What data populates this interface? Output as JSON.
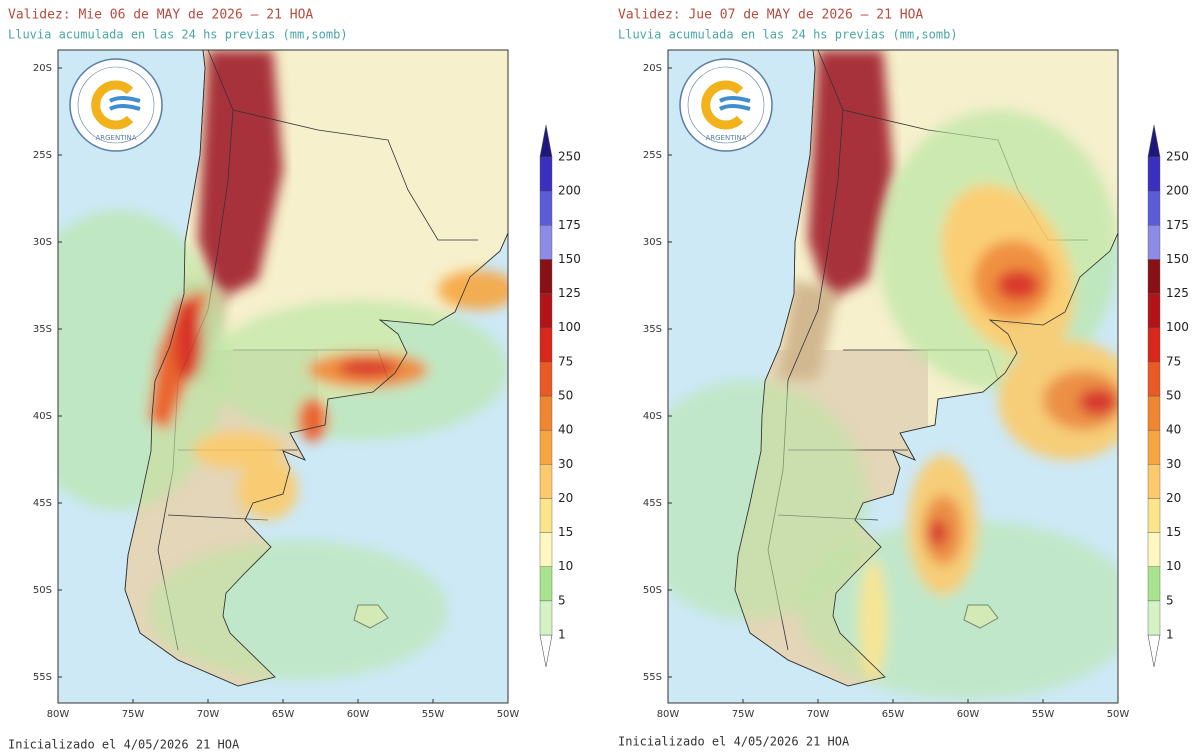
{
  "panels": [
    {
      "title": "Validez: Mie 06 de MAY de 2026 – 21 HOA",
      "subtitle": "Lluvia acumulada en las 24 hs previas (mm,somb)",
      "lat_labels": [
        "20S",
        "25S",
        "30S",
        "35S",
        "40S",
        "45S",
        "50S",
        "55S"
      ],
      "lon_labels": [
        "80W",
        "75W",
        "70W",
        "65W",
        "60W",
        "55W",
        "50W"
      ],
      "footer": "Inicializado el 4/05/2026 21 HOA"
    },
    {
      "title": "Validez: Jue 07 de MAY de 2026 – 21 HOA",
      "subtitle": "Lluvia acumulada en las 24 hs previas (mm,somb)",
      "lat_labels": [
        "20S",
        "25S",
        "30S",
        "35S",
        "40S",
        "45S",
        "50S",
        "55S"
      ],
      "lon_labels": [
        "80W",
        "75W",
        "70W",
        "65W",
        "60W",
        "55W",
        "50W"
      ],
      "footer": "Inicializado el 4/05/2026 21 HOA"
    }
  ],
  "logo_text": "ARGENTINA",
  "colorbar": {
    "levels": [
      1,
      5,
      10,
      15,
      20,
      30,
      40,
      50,
      75,
      100,
      125,
      150,
      175,
      200,
      250
    ],
    "colors": [
      "#ffffff",
      "#d4f2c4",
      "#a8e490",
      "#fdf7c0",
      "#fbe58a",
      "#fbca6a",
      "#f7a540",
      "#f08630",
      "#ea5a24",
      "#d9271c",
      "#b3141a",
      "#8a1018",
      "#8c8ce8",
      "#5c5cd8",
      "#3a30c0",
      "#1c1880"
    ]
  }
}
